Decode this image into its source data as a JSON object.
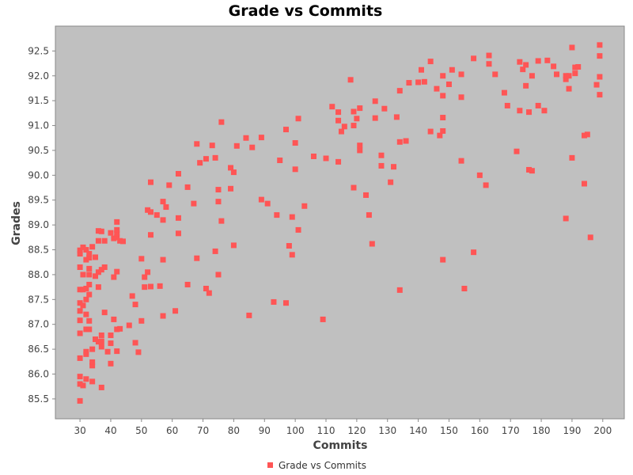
{
  "chart_data": {
    "type": "scatter",
    "title": "Grade vs Commits",
    "xlabel": "Commits",
    "ylabel": "Grades",
    "xlim": [
      22,
      207
    ],
    "ylim": [
      85.1,
      93.0
    ],
    "xticks": [
      30,
      40,
      50,
      60,
      70,
      80,
      90,
      100,
      110,
      120,
      130,
      140,
      150,
      160,
      170,
      180,
      190,
      200
    ],
    "yticks": [
      85.5,
      86.0,
      86.5,
      87.0,
      87.5,
      88.0,
      88.5,
      89.0,
      89.5,
      90.0,
      90.5,
      91.0,
      91.5,
      92.0,
      92.5
    ],
    "grid": false,
    "legend_position": "bottom",
    "colors": {
      "marker": "#ff5555",
      "plot_background": "#c0c0c0"
    },
    "series": [
      {
        "name": "Grade vs Commits",
        "points": [
          [
            30,
            85.46
          ],
          [
            30,
            85.8
          ],
          [
            30,
            85.95
          ],
          [
            30,
            86.32
          ],
          [
            30,
            86.82
          ],
          [
            30,
            87.08
          ],
          [
            30,
            87.27
          ],
          [
            30,
            87.43
          ],
          [
            30,
            87.7
          ],
          [
            30,
            88.15
          ],
          [
            30,
            88.42
          ],
          [
            30,
            88.49
          ],
          [
            31,
            85.77
          ],
          [
            31,
            87.38
          ],
          [
            31,
            87.7
          ],
          [
            31,
            88.0
          ],
          [
            31,
            88.55
          ],
          [
            32,
            85.9
          ],
          [
            32,
            86.4
          ],
          [
            32,
            86.45
          ],
          [
            32,
            86.9
          ],
          [
            32,
            87.2
          ],
          [
            32,
            87.5
          ],
          [
            32,
            87.72
          ],
          [
            32,
            88.3
          ],
          [
            32,
            88.5
          ],
          [
            33,
            86.9
          ],
          [
            33,
            87.07
          ],
          [
            33,
            87.6
          ],
          [
            33,
            87.8
          ],
          [
            33,
            88.0
          ],
          [
            33,
            88.12
          ],
          [
            33,
            88.34
          ],
          [
            33,
            88.42
          ],
          [
            34,
            85.85
          ],
          [
            34,
            86.17
          ],
          [
            34,
            86.24
          ],
          [
            34,
            86.5
          ],
          [
            34,
            88.56
          ],
          [
            35,
            86.7
          ],
          [
            35,
            87.97
          ],
          [
            35,
            88.35
          ],
          [
            36,
            86.65
          ],
          [
            36,
            87.75
          ],
          [
            36,
            88.05
          ],
          [
            36,
            88.68
          ],
          [
            36,
            88.88
          ],
          [
            37,
            85.73
          ],
          [
            37,
            86.55
          ],
          [
            37,
            86.66
          ],
          [
            37,
            86.78
          ],
          [
            37,
            88.1
          ],
          [
            37,
            88.87
          ],
          [
            38,
            87.24
          ],
          [
            38,
            88.15
          ],
          [
            38,
            88.68
          ],
          [
            39,
            86.45
          ],
          [
            40,
            86.21
          ],
          [
            40,
            86.62
          ],
          [
            40,
            86.78
          ],
          [
            40,
            88.84
          ],
          [
            41,
            87.1
          ],
          [
            41,
            87.95
          ],
          [
            41,
            88.73
          ],
          [
            42,
            86.46
          ],
          [
            42,
            86.9
          ],
          [
            42,
            88.06
          ],
          [
            42,
            88.75
          ],
          [
            42,
            88.83
          ],
          [
            42,
            88.9
          ],
          [
            42,
            89.06
          ],
          [
            43,
            86.91
          ],
          [
            43,
            88.68
          ],
          [
            44,
            88.67
          ],
          [
            46,
            86.98
          ],
          [
            47,
            87.57
          ],
          [
            48,
            86.63
          ],
          [
            48,
            87.4
          ],
          [
            49,
            86.44
          ],
          [
            50,
            87.07
          ],
          [
            50,
            88.32
          ],
          [
            51,
            87.75
          ],
          [
            51,
            87.95
          ],
          [
            52,
            88.05
          ],
          [
            52,
            89.3
          ],
          [
            53,
            87.76
          ],
          [
            53,
            88.8
          ],
          [
            53,
            89.26
          ],
          [
            53,
            89.86
          ],
          [
            55,
            89.2
          ],
          [
            56,
            87.77
          ],
          [
            57,
            87.17
          ],
          [
            57,
            88.3
          ],
          [
            57,
            89.1
          ],
          [
            57,
            89.47
          ],
          [
            58,
            89.36
          ],
          [
            59,
            89.8
          ],
          [
            61,
            87.27
          ],
          [
            62,
            88.83
          ],
          [
            62,
            89.14
          ],
          [
            62,
            90.03
          ],
          [
            65,
            87.8
          ],
          [
            65,
            89.76
          ],
          [
            67,
            89.43
          ],
          [
            68,
            88.33
          ],
          [
            68,
            90.63
          ],
          [
            69,
            90.25
          ],
          [
            71,
            87.72
          ],
          [
            71,
            90.33
          ],
          [
            72,
            87.63
          ],
          [
            73,
            90.6
          ],
          [
            74,
            88.47
          ],
          [
            74,
            90.35
          ],
          [
            75,
            88.0
          ],
          [
            75,
            89.47
          ],
          [
            75,
            89.71
          ],
          [
            76,
            89.08
          ],
          [
            76,
            91.07
          ],
          [
            79,
            89.73
          ],
          [
            79,
            90.15
          ],
          [
            80,
            88.59
          ],
          [
            80,
            90.06
          ],
          [
            81,
            90.59
          ],
          [
            84,
            90.75
          ],
          [
            85,
            87.18
          ],
          [
            86,
            90.56
          ],
          [
            89,
            89.51
          ],
          [
            89,
            90.76
          ],
          [
            91,
            89.43
          ],
          [
            93,
            87.45
          ],
          [
            94,
            89.2
          ],
          [
            95,
            90.3
          ],
          [
            97,
            87.43
          ],
          [
            97,
            90.92
          ],
          [
            98,
            88.58
          ],
          [
            99,
            88.4
          ],
          [
            99,
            89.16
          ],
          [
            100,
            90.12
          ],
          [
            100,
            90.65
          ],
          [
            101,
            88.9
          ],
          [
            101,
            91.14
          ],
          [
            103,
            89.38
          ],
          [
            106,
            90.38
          ],
          [
            109,
            87.1
          ],
          [
            110,
            90.34
          ],
          [
            112,
            91.38
          ],
          [
            114,
            90.27
          ],
          [
            114,
            91.1
          ],
          [
            114,
            91.27
          ],
          [
            115,
            90.88
          ],
          [
            116,
            90.98
          ],
          [
            118,
            91.92
          ],
          [
            119,
            89.75
          ],
          [
            119,
            91.0
          ],
          [
            119,
            91.28
          ],
          [
            120,
            91.14
          ],
          [
            121,
            90.5
          ],
          [
            121,
            90.6
          ],
          [
            121,
            91.35
          ],
          [
            123,
            89.6
          ],
          [
            124,
            89.2
          ],
          [
            125,
            88.62
          ],
          [
            126,
            91.15
          ],
          [
            126,
            91.49
          ],
          [
            128,
            90.19
          ],
          [
            128,
            90.4
          ],
          [
            129,
            91.34
          ],
          [
            131,
            89.86
          ],
          [
            132,
            90.17
          ],
          [
            133,
            91.17
          ],
          [
            134,
            87.69
          ],
          [
            134,
            90.67
          ],
          [
            134,
            91.7
          ],
          [
            136,
            90.69
          ],
          [
            137,
            91.86
          ],
          [
            140,
            91.87
          ],
          [
            141,
            92.12
          ],
          [
            142,
            91.88
          ],
          [
            144,
            90.88
          ],
          [
            144,
            92.29
          ],
          [
            146,
            91.74
          ],
          [
            147,
            90.8
          ],
          [
            148,
            88.3
          ],
          [
            148,
            90.89
          ],
          [
            148,
            91.16
          ],
          [
            148,
            91.6
          ],
          [
            148,
            92.0
          ],
          [
            150,
            91.83
          ],
          [
            151,
            92.12
          ],
          [
            154,
            90.29
          ],
          [
            154,
            91.57
          ],
          [
            154,
            92.03
          ],
          [
            155,
            87.72
          ],
          [
            158,
            88.45
          ],
          [
            158,
            92.35
          ],
          [
            160,
            90.0
          ],
          [
            162,
            89.8
          ],
          [
            163,
            92.24
          ],
          [
            163,
            92.41
          ],
          [
            165,
            92.03
          ],
          [
            168,
            91.66
          ],
          [
            169,
            91.4
          ],
          [
            172,
            90.48
          ],
          [
            173,
            91.3
          ],
          [
            173,
            92.28
          ],
          [
            174,
            92.13
          ],
          [
            175,
            91.8
          ],
          [
            175,
            92.22
          ],
          [
            176,
            90.11
          ],
          [
            176,
            91.27
          ],
          [
            177,
            90.09
          ],
          [
            177,
            92.0
          ],
          [
            179,
            91.4
          ],
          [
            179,
            92.3
          ],
          [
            181,
            91.3
          ],
          [
            182,
            92.31
          ],
          [
            184,
            92.19
          ],
          [
            185,
            92.03
          ],
          [
            188,
            89.13
          ],
          [
            188,
            91.93
          ],
          [
            188,
            92.0
          ],
          [
            189,
            91.74
          ],
          [
            189,
            92.0
          ],
          [
            190,
            90.35
          ],
          [
            190,
            92.57
          ],
          [
            191,
            92.05
          ],
          [
            191,
            92.17
          ],
          [
            192,
            92.18
          ],
          [
            194,
            89.83
          ],
          [
            194,
            90.8
          ],
          [
            195,
            90.82
          ],
          [
            196,
            88.75
          ],
          [
            198,
            91.82
          ],
          [
            199,
            91.62
          ],
          [
            199,
            91.98
          ],
          [
            199,
            92.4
          ],
          [
            199,
            92.62
          ]
        ]
      }
    ]
  }
}
